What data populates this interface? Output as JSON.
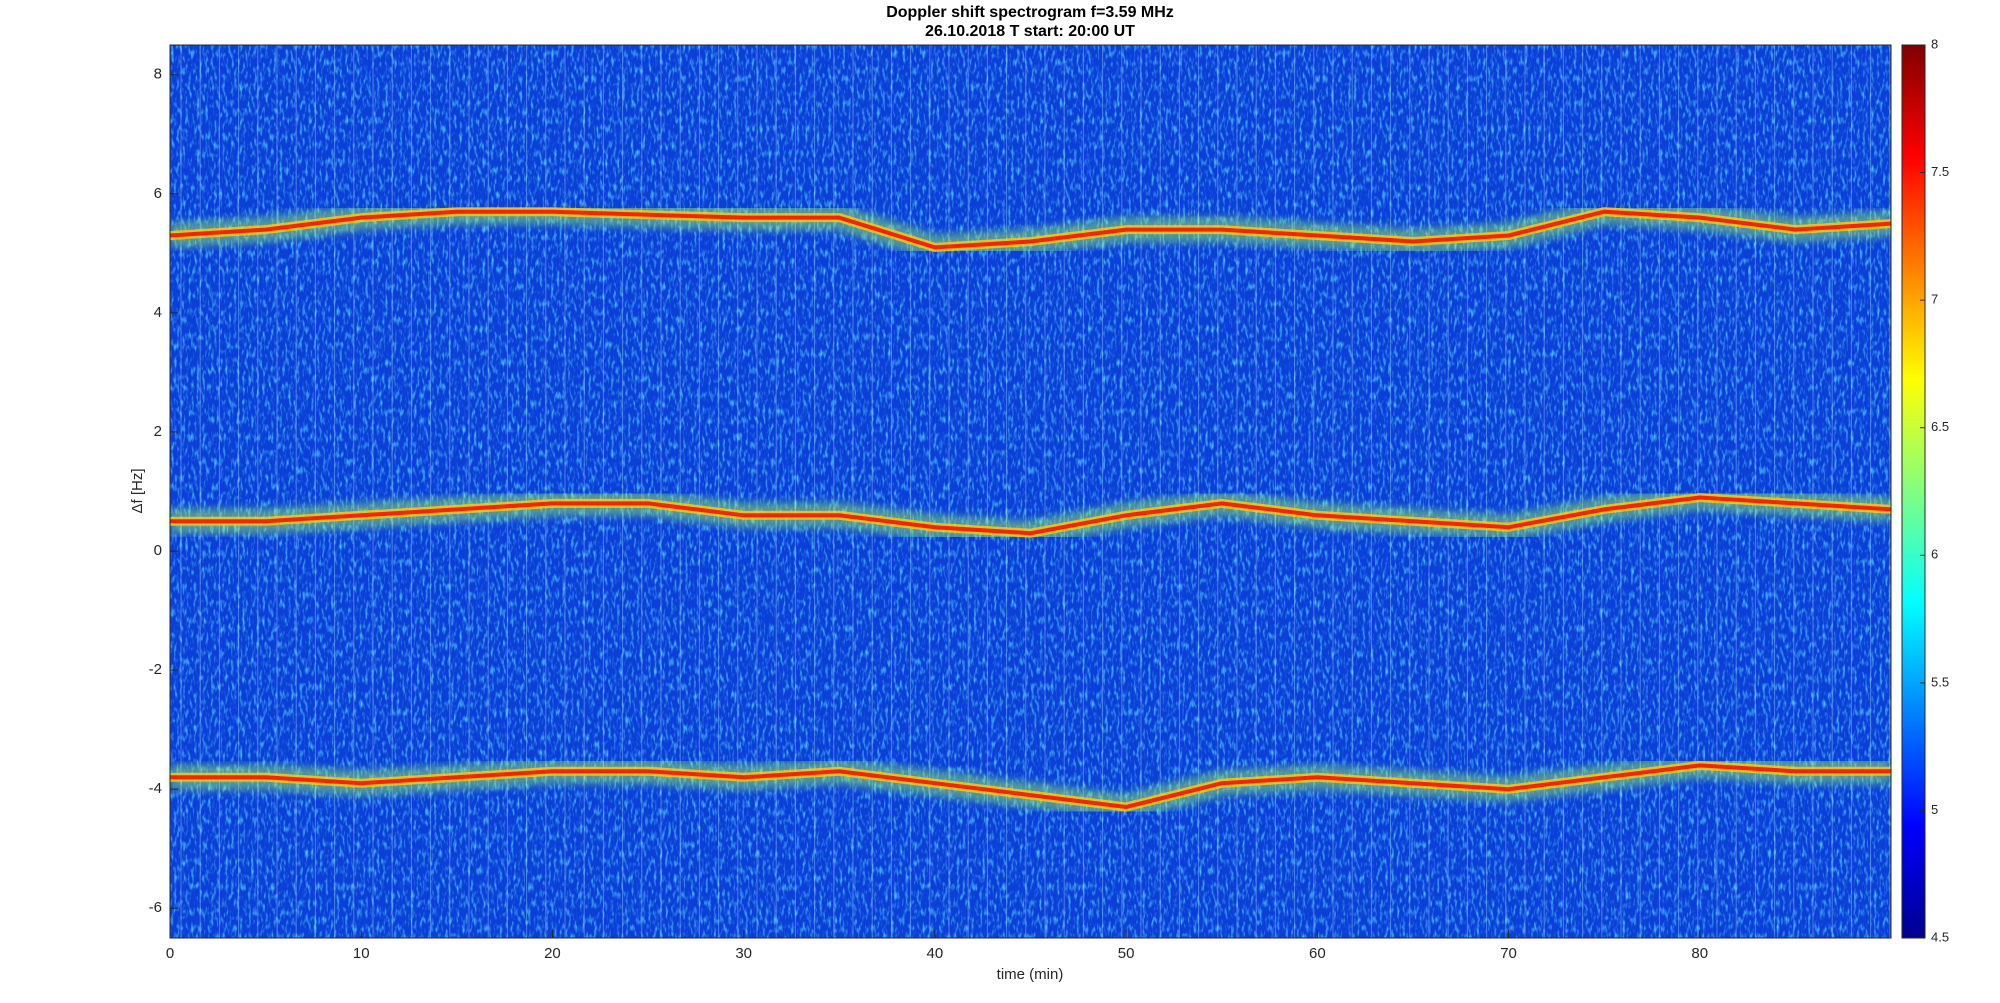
{
  "chart_data": {
    "type": "spectrogram",
    "title": "Doppler shift spectrogram f=3.59 MHz",
    "subtitle": "26.10.2018   T start: 20:00 UT",
    "x_label": "time (min)",
    "y_label": "Δf [Hz]",
    "x": [
      0,
      5,
      10,
      15,
      20,
      25,
      30,
      35,
      40,
      45,
      50,
      55,
      60,
      65,
      70,
      75,
      80,
      85,
      90
    ],
    "series": [
      {
        "color": "#ff2000",
        "values": [
          5.3,
          5.4,
          5.6,
          5.7,
          5.7,
          5.65,
          5.6,
          5.6,
          5.1,
          5.2,
          5.4,
          5.4,
          5.3,
          5.2,
          5.3,
          5.7,
          5.6,
          5.4,
          5.5
        ]
      },
      {
        "color": "#ff2000",
        "values": [
          0.5,
          0.5,
          0.6,
          0.7,
          0.8,
          0.8,
          0.6,
          0.6,
          0.4,
          0.3,
          0.6,
          0.8,
          0.6,
          0.5,
          0.4,
          0.7,
          0.9,
          0.8,
          0.7
        ]
      },
      {
        "color": "#ff2000",
        "values": [
          -3.8,
          -3.8,
          -3.9,
          -3.8,
          -3.7,
          -3.7,
          -3.8,
          -3.7,
          -3.9,
          -4.1,
          -4.3,
          -3.9,
          -3.8,
          -3.9,
          -4.0,
          -3.8,
          -3.6,
          -3.7,
          -3.7
        ]
      }
    ],
    "xlim": [
      0,
      90
    ],
    "xticks": [
      0,
      10,
      20,
      30,
      40,
      50,
      60,
      70,
      80
    ],
    "ylim": [
      -6.5,
      8.5
    ],
    "yticks": [
      -6,
      -4,
      -2,
      0,
      2,
      4,
      6,
      8
    ],
    "background_color": "#0b3fd8",
    "colorbar": {
      "lim": [
        4.5,
        8
      ],
      "ticks": [
        4.5,
        5,
        5.5,
        6,
        6.5,
        7,
        7.5,
        8
      ],
      "colors": [
        "#00008f",
        "#0000ff",
        "#0080ff",
        "#00ffff",
        "#80ff80",
        "#ffff00",
        "#ff8000",
        "#ff0000",
        "#800000"
      ]
    }
  }
}
